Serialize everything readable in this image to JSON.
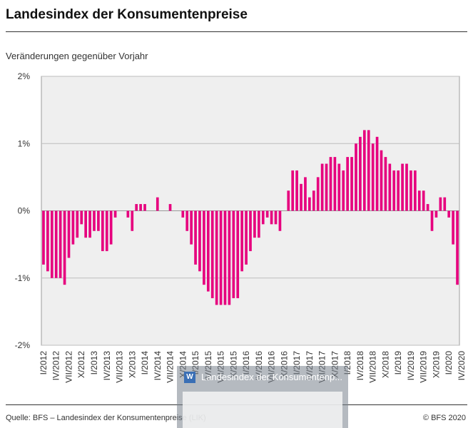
{
  "header": {
    "title": "Landesindex der Konsumentenpreise",
    "subtitle": "Veränderungen gegenüber Vorjahr"
  },
  "footer": {
    "source": "Quelle: BFS – Landesindex der Konsumentenpreise (LIK)",
    "copyright": "© BFS 2020"
  },
  "overlay": {
    "title": "Landesindex der Konsumentenp...",
    "icon": "word-document-icon"
  },
  "colors": {
    "bar": "#e6007e",
    "plot_bg": "#efefef",
    "grid": "#bdbdbd"
  },
  "chart_data": {
    "type": "bar",
    "title": "Landesindex der Konsumentenpreise",
    "subtitle": "Veränderungen gegenüber Vorjahr",
    "ylim": [
      -2,
      2
    ],
    "y_ticks": [
      {
        "value": 2,
        "label": "2%"
      },
      {
        "value": 1,
        "label": "1%"
      },
      {
        "value": 0,
        "label": "0%"
      },
      {
        "value": -1,
        "label": "-1%"
      },
      {
        "value": -2,
        "label": "-2%"
      }
    ],
    "grid": true,
    "x_tick_labels": [
      "I/2012",
      "IV/2012",
      "VII/2012",
      "X/2012",
      "I/2013",
      "IV/2013",
      "VII/2013",
      "X/2013",
      "I/2014",
      "IV/2014",
      "VII/2014",
      "X/2014",
      "I/2015",
      "IV/2015",
      "VII/2015",
      "X/2015",
      "I/2016",
      "IV/2016",
      "VII/2016",
      "X/2016",
      "I/2017",
      "IV/2017",
      "VII/2017",
      "X/2017",
      "I/2018",
      "IV/2018",
      "VII/2018",
      "X/2018",
      "I/2019",
      "IV/2019",
      "VII/2019",
      "X/2019",
      "I/2020",
      "IV/2020"
    ],
    "values": [
      -0.8,
      -0.9,
      -1.0,
      -1.0,
      -1.0,
      -1.1,
      -0.7,
      -0.5,
      -0.4,
      -0.2,
      -0.4,
      -0.4,
      -0.3,
      -0.3,
      -0.6,
      -0.6,
      -0.5,
      -0.1,
      0.0,
      0.0,
      -0.1,
      -0.3,
      0.1,
      0.1,
      0.1,
      0.0,
      0.0,
      0.2,
      0.0,
      0.0,
      0.1,
      0.0,
      0.0,
      -0.1,
      -0.3,
      -0.5,
      -0.8,
      -0.9,
      -1.1,
      -1.2,
      -1.3,
      -1.4,
      -1.4,
      -1.4,
      -1.4,
      -1.3,
      -1.3,
      -0.9,
      -0.8,
      -0.6,
      -0.4,
      -0.4,
      -0.2,
      -0.1,
      -0.2,
      -0.2,
      -0.3,
      0.0,
      0.3,
      0.6,
      0.6,
      0.4,
      0.5,
      0.2,
      0.3,
      0.5,
      0.7,
      0.7,
      0.8,
      0.8,
      0.7,
      0.6,
      0.8,
      0.8,
      1.0,
      1.1,
      1.2,
      1.2,
      1.0,
      1.1,
      0.9,
      0.8,
      0.7,
      0.6,
      0.6,
      0.7,
      0.7,
      0.6,
      0.6,
      0.3,
      0.3,
      0.1,
      -0.3,
      -0.1,
      0.2,
      0.2,
      -0.1,
      -0.5,
      -1.1
    ]
  }
}
